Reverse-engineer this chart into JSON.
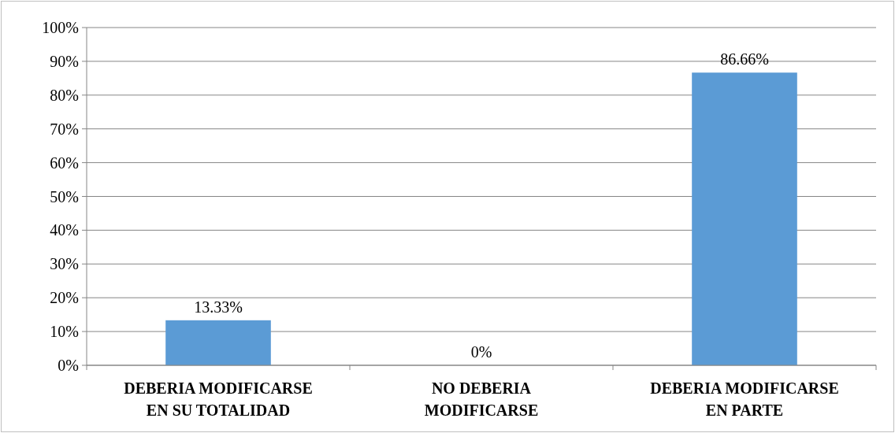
{
  "chart_data": {
    "type": "bar",
    "categories": [
      "DEBERIA MODIFICARSE EN SU TOTALIDAD",
      "NO DEBERIA MODIFICARSE",
      "DEBERIA MODIFICARSE EN PARTE"
    ],
    "values": [
      13.33,
      0,
      86.66
    ],
    "color": "#5b9bd5",
    "value_labels": [
      "13.33%",
      "0%",
      "86.66%"
    ],
    "ylim": [
      0,
      100
    ],
    "yticks": [
      {
        "value": 0,
        "label": "0%"
      },
      {
        "value": 10,
        "label": "10%"
      },
      {
        "value": 20,
        "label": "20%"
      },
      {
        "value": 30,
        "label": "30%"
      },
      {
        "value": 40,
        "label": "40%"
      },
      {
        "value": 50,
        "label": "50%"
      },
      {
        "value": 60,
        "label": "60%"
      },
      {
        "value": 70,
        "label": "70%"
      },
      {
        "value": 80,
        "label": "80%"
      },
      {
        "value": 90,
        "label": "90%"
      },
      {
        "value": 100,
        "label": "100%"
      }
    ],
    "grid": "y"
  }
}
